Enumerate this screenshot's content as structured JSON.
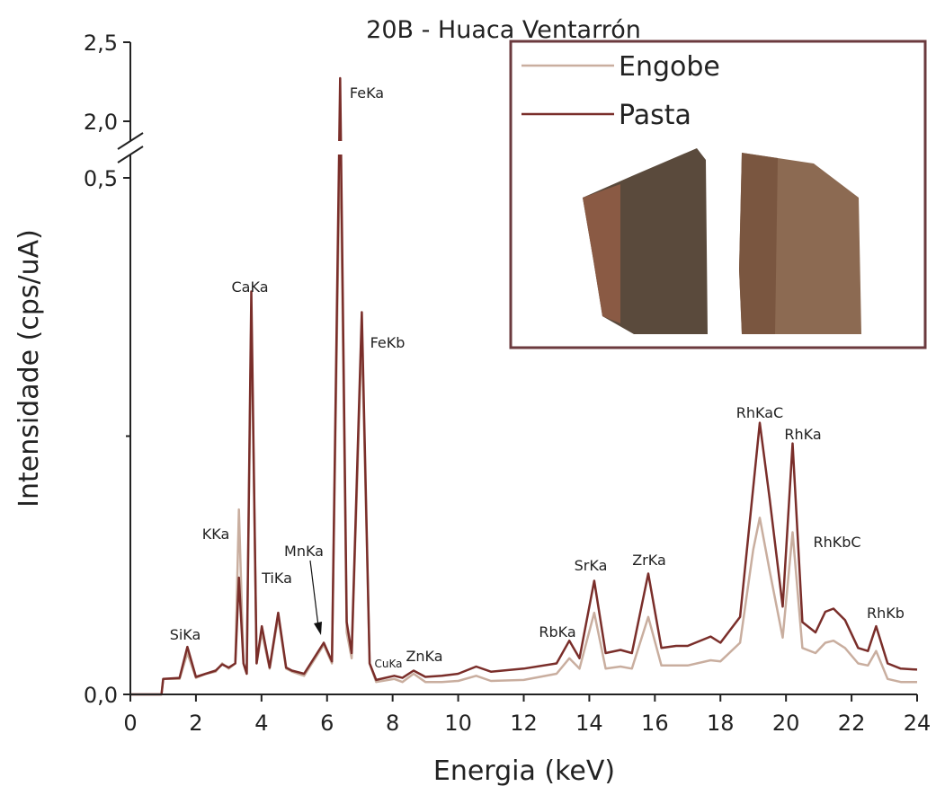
{
  "chart_data": {
    "type": "line",
    "title": "20B - Huaca Ventarrón",
    "x_label": "Energia (keV)",
    "y_label": "Intensidade (cps/uA)",
    "x": [
      0,
      0.95,
      1.0,
      1.5,
      1.74,
      2.0,
      2.3,
      2.6,
      2.8,
      3.0,
      3.2,
      3.31,
      3.45,
      3.55,
      3.69,
      3.85,
      4.01,
      4.25,
      4.51,
      4.75,
      4.93,
      5.3,
      5.9,
      6.15,
      6.4,
      6.6,
      6.75,
      7.06,
      7.3,
      7.5,
      8.05,
      8.3,
      8.64,
      9.0,
      9.5,
      10.0,
      10.55,
      11.0,
      12.0,
      13.0,
      13.39,
      13.7,
      14.15,
      14.5,
      14.95,
      15.3,
      15.8,
      16.2,
      16.65,
      17.0,
      17.7,
      18.0,
      18.6,
      19.0,
      19.2,
      19.5,
      19.9,
      20.2,
      20.5,
      20.9,
      21.2,
      21.45,
      21.8,
      22.2,
      22.5,
      22.75,
      23.1,
      23.5,
      24.0
    ],
    "series": [
      {
        "name": "Engobe",
        "color": "#c9ae9f",
        "values": [
          0,
          0,
          0.015,
          0.015,
          0.04,
          0.016,
          0.02,
          0.022,
          0.03,
          0.025,
          0.03,
          0.179,
          0.03,
          0.02,
          0.37,
          0.03,
          0.06,
          0.025,
          0.075,
          0.025,
          0.022,
          0.018,
          0.048,
          0.03,
          1.8,
          0.06,
          0.035,
          0.35,
          0.03,
          0.012,
          0.015,
          0.012,
          0.02,
          0.012,
          0.012,
          0.013,
          0.018,
          0.013,
          0.014,
          0.02,
          0.035,
          0.025,
          0.079,
          0.025,
          0.027,
          0.025,
          0.075,
          0.028,
          0.028,
          0.028,
          0.033,
          0.032,
          0.05,
          0.14,
          0.171,
          0.12,
          0.055,
          0.157,
          0.045,
          0.04,
          0.05,
          0.052,
          0.045,
          0.03,
          0.028,
          0.042,
          0.015,
          0.012,
          0.012
        ]
      },
      {
        "name": "Pasta",
        "color": "#7a2e2a",
        "values": [
          0,
          0,
          0.015,
          0.016,
          0.046,
          0.017,
          0.02,
          0.023,
          0.029,
          0.026,
          0.03,
          0.113,
          0.03,
          0.02,
          0.39,
          0.03,
          0.066,
          0.026,
          0.079,
          0.026,
          0.023,
          0.02,
          0.05,
          0.032,
          2.273,
          0.07,
          0.04,
          0.37,
          0.03,
          0.014,
          0.018,
          0.016,
          0.023,
          0.017,
          0.018,
          0.02,
          0.027,
          0.022,
          0.025,
          0.03,
          0.052,
          0.035,
          0.11,
          0.04,
          0.043,
          0.04,
          0.117,
          0.045,
          0.047,
          0.047,
          0.056,
          0.05,
          0.075,
          0.2,
          0.263,
          0.19,
          0.085,
          0.243,
          0.07,
          0.06,
          0.08,
          0.083,
          0.072,
          0.045,
          0.042,
          0.066,
          0.03,
          0.025,
          0.024
        ]
      }
    ],
    "xlim": [
      0,
      24
    ],
    "xticks": [
      0,
      2,
      4,
      6,
      8,
      10,
      12,
      14,
      16,
      18,
      20,
      22,
      24
    ],
    "ylim": [
      0,
      2.5
    ],
    "y_break": [
      0.5,
      2.0
    ],
    "yticks": [
      {
        "value": 0,
        "label": "0,0"
      },
      {
        "value": 0.5,
        "label": "0,5"
      },
      {
        "value": 2,
        "label": "2,0"
      },
      {
        "value": 2.5,
        "label": "2,5"
      }
    ],
    "y_minor_ticks": [
      0.25
    ],
    "peak_labels": [
      "SiKa",
      "KKa",
      "CaKa",
      "TiKa",
      "MnKa",
      "FeKa",
      "FeKb",
      "CuKa",
      "ZnKa",
      "RbKa",
      "SrKa",
      "ZrKa",
      "RhKaC",
      "RhKa",
      "RhKbC",
      "RhKb"
    ],
    "legend": "top-right"
  }
}
